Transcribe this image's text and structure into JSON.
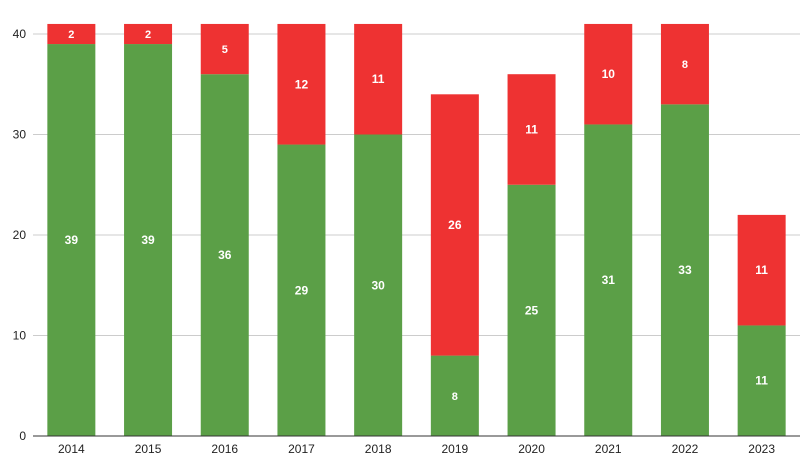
{
  "chart_data": {
    "type": "bar",
    "stacked": true,
    "title": "",
    "xlabel": "",
    "ylabel": "",
    "legend": "none",
    "grid": true,
    "ylim": [
      0,
      40
    ],
    "yticks": [
      0,
      10,
      20,
      30,
      40
    ],
    "categories": [
      "2014",
      "2015",
      "2016",
      "2017",
      "2018",
      "2019",
      "2020",
      "2021",
      "2022",
      "2023"
    ],
    "series": [
      {
        "name": "green",
        "color": "#5b9f47",
        "values": [
          39,
          39,
          36,
          29,
          30,
          8,
          25,
          31,
          33,
          11
        ]
      },
      {
        "name": "red",
        "color": "#ee3232",
        "values": [
          2,
          2,
          5,
          12,
          11,
          26,
          11,
          10,
          8,
          11
        ]
      }
    ]
  }
}
